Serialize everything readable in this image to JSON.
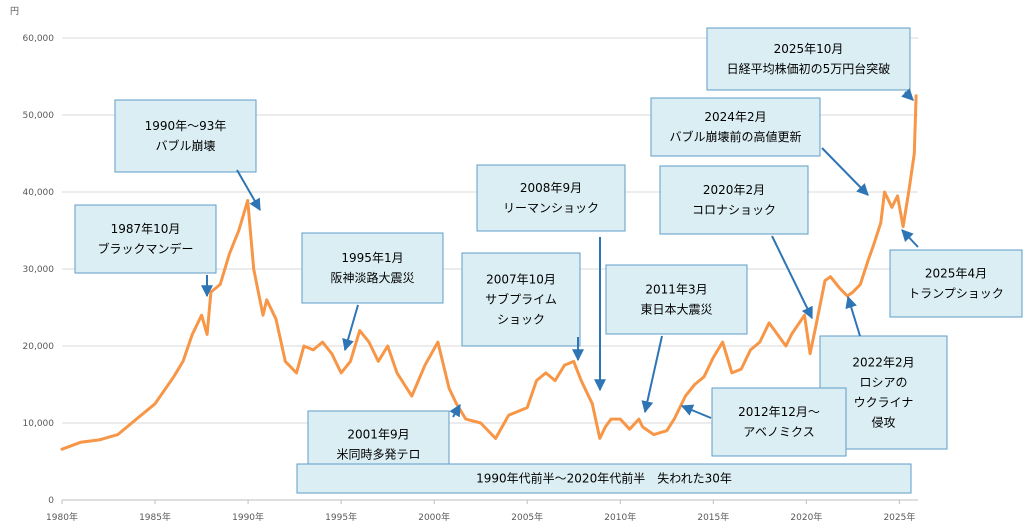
{
  "chart_data": {
    "type": "line",
    "ylabel": "円",
    "ylim": [
      0,
      60000
    ],
    "xlim": [
      1980,
      2026
    ],
    "grid": "horizontal",
    "colors": {
      "line": "#f79646",
      "box_fill": "#dbeef4",
      "box_border": "#5f9ec7",
      "arrow": "#2e75b6",
      "grid": "#d9d9d9"
    },
    "x_ticks": [
      "1980年",
      "1985年",
      "1990年",
      "1995年",
      "2000年",
      "2005年",
      "2010年",
      "2015年",
      "2020年",
      "2025年"
    ],
    "y_ticks": [
      "0",
      "10,000",
      "20,000",
      "30,000",
      "40,000",
      "50,000",
      "60,000"
    ],
    "series": [
      {
        "x": [
          1980.0,
          1981.0,
          1982.0,
          1983.0,
          1984.0,
          1985.0,
          1986.0,
          1986.5,
          1987.0,
          1987.5,
          1987.8,
          1988.0,
          1988.5,
          1989.0,
          1989.5,
          1989.98,
          1990.3,
          1990.8,
          1991.0,
          1991.5,
          1992.0,
          1992.6,
          1993.0,
          1993.5,
          1994.0,
          1994.5,
          1995.0,
          1995.5,
          1996.0,
          1996.5,
          1997.0,
          1997.5,
          1998.0,
          1998.8,
          1999.5,
          2000.2,
          2000.8,
          2001.2,
          2001.7,
          2002.5,
          2003.3,
          2004.0,
          2005.0,
          2005.5,
          2006.0,
          2006.5,
          2007.0,
          2007.5,
          2007.9,
          2008.5,
          2008.9,
          2009.2,
          2009.5,
          2010.0,
          2010.5,
          2011.0,
          2011.2,
          2011.8,
          2012.5,
          2012.9,
          2013.5,
          2014.0,
          2014.5,
          2015.0,
          2015.5,
          2016.0,
          2016.5,
          2017.0,
          2017.5,
          2018.0,
          2018.9,
          2019.2,
          2019.9,
          2020.2,
          2020.5,
          2021.0,
          2021.3,
          2021.8,
          2022.2,
          2022.5,
          2022.9,
          2023.3,
          2023.6,
          2024.0,
          2024.2,
          2024.6,
          2024.9,
          2025.2,
          2025.5,
          2025.8,
          2025.9
        ],
        "y": [
          6600,
          7500,
          7800,
          8500,
          10500,
          12500,
          16000,
          18000,
          21500,
          24000,
          21500,
          27000,
          28000,
          32000,
          35000,
          38900,
          30000,
          24000,
          26000,
          23500,
          18000,
          16500,
          20000,
          19500,
          20500,
          19000,
          16500,
          18000,
          22000,
          20500,
          18000,
          20000,
          16500,
          13500,
          17500,
          20500,
          14500,
          12500,
          10500,
          10000,
          8000,
          11000,
          12000,
          15500,
          16500,
          15500,
          17500,
          18000,
          15500,
          12500,
          8000,
          9500,
          10500,
          10500,
          9200,
          10500,
          9500,
          8500,
          9000,
          10500,
          13500,
          15000,
          16000,
          18500,
          20500,
          16500,
          17000,
          19500,
          20500,
          23000,
          20000,
          21500,
          24000,
          19000,
          22500,
          28500,
          29000,
          27500,
          26500,
          27000,
          28000,
          31000,
          33000,
          36000,
          40000,
          38000,
          39500,
          35500,
          40000,
          45000,
          52500
        ]
      }
    ],
    "annotations": [
      {
        "title": "2025年10月",
        "text": "日経平均株価初の5万円台突破"
      },
      {
        "title": "1990年～93年",
        "text": "バブル崩壊"
      },
      {
        "title": "2024年2月",
        "text": "バブル崩壊前の高値更新"
      },
      {
        "title": "2008年9月",
        "text": "リーマンショック"
      },
      {
        "title": "2020年2月",
        "text": "コロナショック"
      },
      {
        "title": "1987年10月",
        "text": "ブラックマンデー"
      },
      {
        "title": "1995年1月",
        "text": "阪神淡路大震災"
      },
      {
        "title": "2007年10月",
        "text": "サブプライム ショック"
      },
      {
        "title": "2011年3月",
        "text": "東日本大震災"
      },
      {
        "title": "2025年4月",
        "text": "トランプショック"
      },
      {
        "title": "2022年2月",
        "text": "ロシアの ウクライナ 侵攻"
      },
      {
        "title": "2012年12月～",
        "text": "アベノミクス"
      },
      {
        "title": "2001年9月",
        "text": "米同時多発テロ"
      },
      {
        "title": "",
        "text": "1990年代前半～2020年代前半　失われた30年"
      }
    ]
  }
}
